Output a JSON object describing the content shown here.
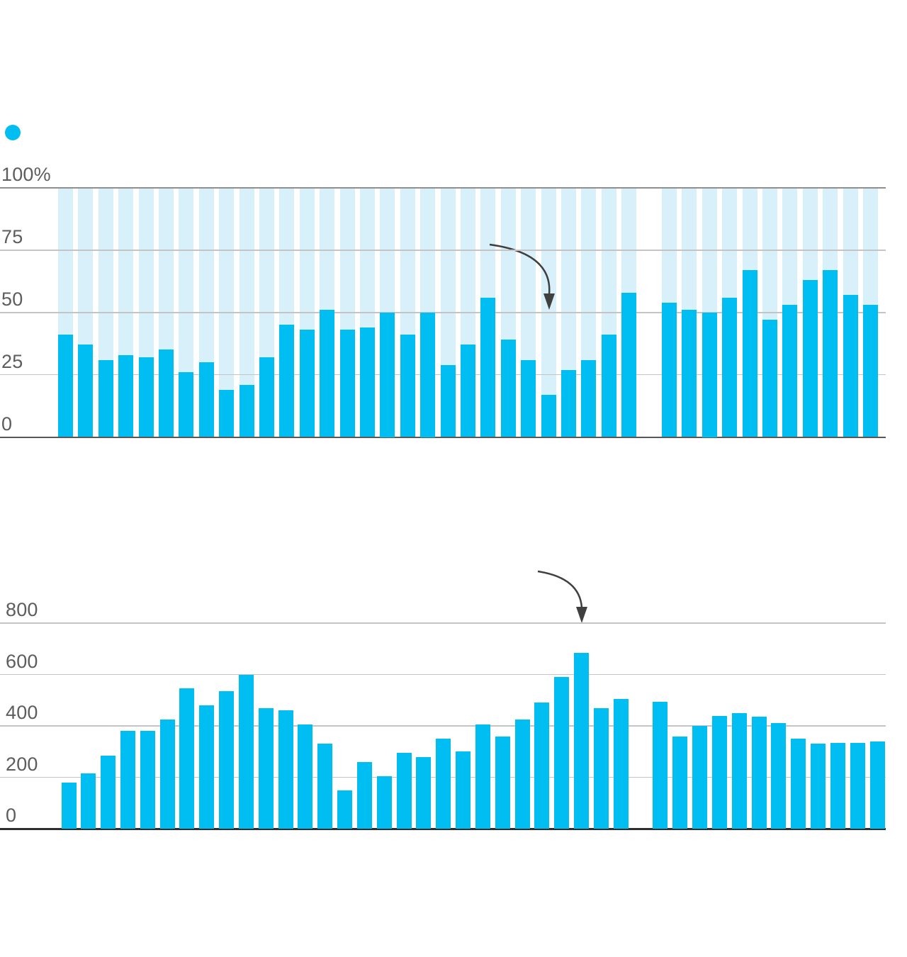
{
  "page": {
    "background": "#ffffff"
  },
  "legend": {
    "marker_color": "#00bdf2",
    "label": ""
  },
  "colors": {
    "bar": "#00bdf2",
    "background_column": "#d8f0f9",
    "gridline": "#c4c4c4",
    "gridline_top_dark": "#8f8f8f",
    "axis_baseline_top_chart": "#585858",
    "axis_baseline_bottom_chart": "#2e2e2e",
    "tick_text": "#5d5d5d",
    "arrow": "#404040"
  },
  "chart_data": [
    {
      "type": "bar",
      "title": "",
      "xlabel": "",
      "ylabel": "",
      "unit": "%",
      "ylim": [
        0,
        100
      ],
      "grid": true,
      "legend_position": "none",
      "has_background_columns": true,
      "y_ticks": [
        {
          "value": 100,
          "label": "100%"
        },
        {
          "value": 75,
          "label": "75"
        },
        {
          "value": 50,
          "label": "50"
        },
        {
          "value": 25,
          "label": "25"
        },
        {
          "value": 0,
          "label": "0"
        }
      ],
      "values": [
        41,
        37,
        31,
        33,
        32,
        35,
        26,
        30,
        19,
        21,
        32,
        45,
        43,
        51,
        43,
        44,
        50,
        41,
        50,
        29,
        37,
        56,
        39,
        31,
        17,
        27,
        31,
        41,
        58,
        null,
        54,
        51,
        50,
        56,
        67,
        47,
        53,
        63,
        67,
        57,
        53
      ],
      "annotation": {
        "type": "arrow",
        "target_bar_index": 24
      }
    },
    {
      "type": "bar",
      "title": "",
      "xlabel": "",
      "ylabel": "",
      "unit": "",
      "ylim": [
        0,
        800
      ],
      "grid": true,
      "legend_position": "none",
      "has_background_columns": false,
      "y_ticks": [
        {
          "value": 800,
          "label": "800"
        },
        {
          "value": 600,
          "label": "600"
        },
        {
          "value": 400,
          "label": "400"
        },
        {
          "value": 200,
          "label": "200"
        },
        {
          "value": 0,
          "label": "0"
        }
      ],
      "values": [
        180,
        215,
        285,
        380,
        380,
        425,
        545,
        480,
        535,
        600,
        470,
        460,
        405,
        330,
        150,
        260,
        205,
        295,
        280,
        350,
        300,
        405,
        360,
        425,
        490,
        590,
        685,
        470,
        505,
        null,
        495,
        360,
        400,
        440,
        450,
        435,
        410,
        350,
        330,
        335,
        335,
        340
      ],
      "annotation": {
        "type": "arrow",
        "target_bar_index": 26
      }
    }
  ]
}
